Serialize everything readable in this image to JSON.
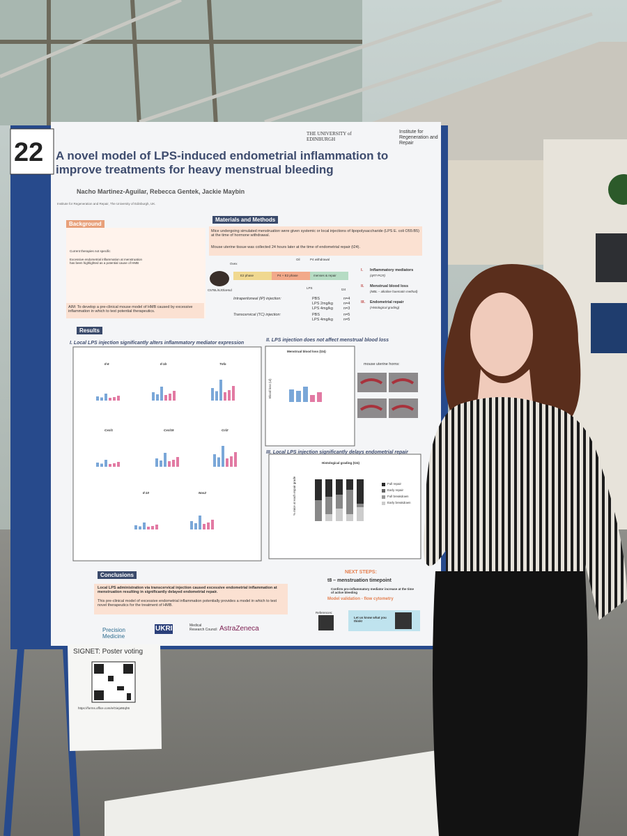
{
  "poster": {
    "number": "22",
    "university": "THE UNIVERSITY of EDINBURGH",
    "institute": "Institute for Regeneration and Repair",
    "title": "A novel model of LPS-induced endometrial inflammation to improve treatments for heavy menstrual bleeding",
    "authors": "Nacho Martinez-Aguilar, Rebecca Gentek, Jackie Maybin",
    "affiliation": "Institute for Regeneration and Repair, The University of Edinburgh, UK.",
    "background": {
      "heading": "Background",
      "items": [
        "Current therapies not specific",
        "Excessive endometrial inflammation at menstruation has been highlighted as a potential cause of HMB"
      ]
    },
    "aim": "AIM: To develop a pre-clinical mouse model of HMB caused by excessive inflammation in which to test potential therapeutics.",
    "methods": {
      "heading": "Materials and Methods",
      "text1": "Mice undergoing simulated menstruation were given systemic or local injections of lipopolysaccharide (LPS E. coli O55:B5) at the time of hormone withdrawal.",
      "text2": "Mouse uterine tissue was collected 24 hours later at the time of endometrial repair (t24).",
      "timeline": {
        "ovex": "Ovex",
        "oil": "Oil",
        "withdrawal": "P4 withdrawal",
        "phase1": "E2 phase",
        "phase2": "P4 + E2 phase",
        "phase3": "menses & repair",
        "lps": "LPS",
        "t24": "t24",
        "strain": "C57BL/6JOlaHsd"
      },
      "groups": [
        {
          "route": "Intraperitoneal (IP) injection:",
          "rows": [
            [
              "PBS",
              "n=4"
            ],
            [
              "LPS 2mg/kg",
              "n=4"
            ],
            [
              "LPS 4mg/kg",
              "n=3"
            ]
          ]
        },
        {
          "route": "Transcervical (TC) injection:",
          "rows": [
            [
              "PBS",
              "n=5"
            ],
            [
              "LPS 4mg/kg",
              "n=5"
            ]
          ]
        }
      ],
      "outcomes": [
        {
          "num": "I.",
          "name": "Inflammatory mediators",
          "method": "(qRT-PCR)"
        },
        {
          "num": "II.",
          "name": "Menstrual blood loss",
          "method": "(MBL – alkaline haematin method)"
        },
        {
          "num": "III.",
          "name": "Endometrial repair",
          "method": "(Histological grading)"
        }
      ]
    },
    "results": {
      "heading": "Results",
      "panel1": {
        "title": "I.  Local LPS injection significantly alters inflammatory mediator expression",
        "genes": [
          "Il-6",
          "Il-1b",
          "Tnfa",
          "Cxcl1",
          "Cxcl15",
          "Ccl2",
          "Il-10",
          "Nos2"
        ]
      },
      "panel2": {
        "title": "II.  LPS injection does not affect menstrual blood loss",
        "chart_title": "Menstrual blood loss (t24)",
        "y_label": "Blood loss (ul)",
        "horns": "mouse uterine horns:"
      },
      "panel3": {
        "title": "III.  Local LPS injection significantly delays endometrial repair",
        "chart_title": "Histological grading (t24)",
        "y_label": "% mice at each repair grade",
        "legend": [
          "Full repair",
          "Early repair",
          "Full breakdown",
          "Early breakdown"
        ]
      }
    },
    "conclusions": {
      "heading": "Conclusions",
      "text1": "Local LPS administration via transcervical injection caused excessive endometrial inflammation at menstruation resulting in significantly delayed endometrial repair.",
      "text2": "This pre-clinical model of excessive endometrial inflammation potentially provides a model in which to test novel therapeutics for the treatment of HMB."
    },
    "next_steps": {
      "heading": "NEXT STEPS:",
      "item1": "t8 – menstruation timepoint",
      "item2": "Confirm pro-inflammatory mediator increase at the time of active bleeding",
      "item3": "Model validation - flow cytometry"
    },
    "references": "References:",
    "feedback": "Let us know what you think!",
    "sponsors": [
      "Precision Medicine",
      "UKRI",
      "Medical Research Council",
      "AstraZeneca"
    ]
  },
  "voting_sheet": {
    "title": "SIGNET: Poster voting",
    "url": "https://forms.office.com/e/GiejaNtqh6"
  }
}
